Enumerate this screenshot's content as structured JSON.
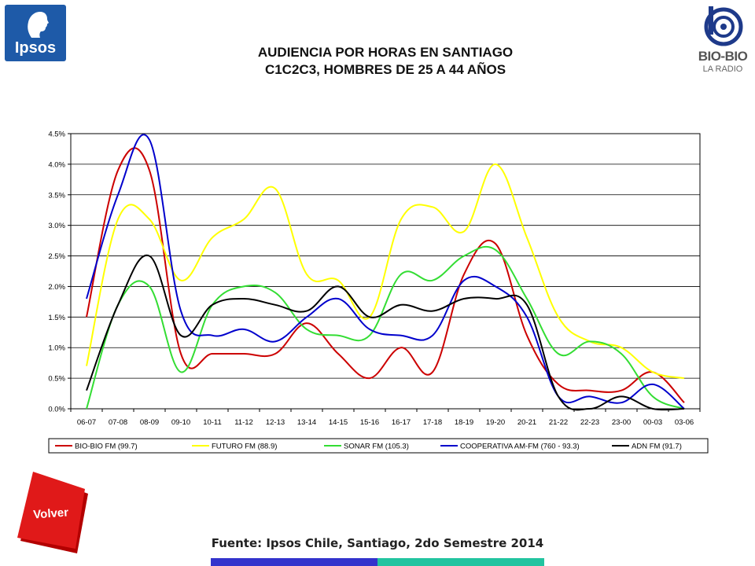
{
  "header": {
    "ipsos_logo_text": "Ipsos",
    "bio_logo_text": "BIO-BIO",
    "bio_logo_sub": "LA RADIO",
    "title_line1": "AUDIENCIA POR HORAS EN SANTIAGO",
    "title_line2": "C1C2C3, HOMBRES DE 25 A 44 AÑOS"
  },
  "footer": {
    "volver_label": "Volver",
    "source": "Fuente: Ipsos Chile, Santiago, 2do Semestre 2014"
  },
  "colors": {
    "ipsos_blue": "#1e5aa8",
    "volver_red": "#e01919",
    "bar_blue": "#3333cc",
    "bar_teal": "#22c4a0"
  },
  "icons": {
    "ipsos": "ipsos-face-logo-icon",
    "bio": "bio-bio-radio-logo-icon"
  },
  "chart_data": {
    "type": "line",
    "title": "",
    "xlabel": "",
    "ylabel": "",
    "ylim": [
      0,
      0.045
    ],
    "yticks": [
      "0.0%",
      "0.5%",
      "1.0%",
      "1.5%",
      "2.0%",
      "2.5%",
      "3.0%",
      "3.5%",
      "4.0%",
      "4.5%"
    ],
    "grid": "horizontal",
    "legend": "bottom",
    "categories": [
      "06-07",
      "07-08",
      "08-09",
      "09-10",
      "10-11",
      "11-12",
      "12-13",
      "13-14",
      "14-15",
      "15-16",
      "16-17",
      "17-18",
      "18-19",
      "19-20",
      "20-21",
      "21-22",
      "22-23",
      "23-00",
      "00-03",
      "03-06"
    ],
    "series": [
      {
        "name": "BIO-BIO FM (99.7)",
        "color": "#cc0000",
        "values": [
          0.015,
          0.039,
          0.039,
          0.009,
          0.009,
          0.009,
          0.009,
          0.014,
          0.009,
          0.005,
          0.01,
          0.006,
          0.022,
          0.027,
          0.012,
          0.004,
          0.003,
          0.003,
          0.006,
          0.001
        ]
      },
      {
        "name": "FUTURO FM (88.9)",
        "color": "#ffff00",
        "values": [
          0.007,
          0.031,
          0.031,
          0.021,
          0.028,
          0.031,
          0.036,
          0.022,
          0.021,
          0.015,
          0.031,
          0.033,
          0.029,
          0.04,
          0.028,
          0.015,
          0.011,
          0.01,
          0.006,
          0.005
        ]
      },
      {
        "name": "SONAR FM (105.3)",
        "color": "#33dd33",
        "values": [
          0.0,
          0.017,
          0.02,
          0.006,
          0.017,
          0.02,
          0.019,
          0.013,
          0.012,
          0.012,
          0.022,
          0.021,
          0.025,
          0.026,
          0.018,
          0.009,
          0.011,
          0.009,
          0.002,
          0.0
        ]
      },
      {
        "name": "COOPERATIVA AM-FM (760 - 93.3)",
        "color": "#0000cc",
        "values": [
          0.018,
          0.035,
          0.044,
          0.016,
          0.012,
          0.013,
          0.011,
          0.015,
          0.018,
          0.013,
          0.012,
          0.012,
          0.021,
          0.02,
          0.015,
          0.002,
          0.002,
          0.001,
          0.004,
          0.0
        ]
      },
      {
        "name": "ADN FM (91.7)",
        "color": "#000000",
        "values": [
          0.003,
          0.017,
          0.025,
          0.012,
          0.017,
          0.018,
          0.017,
          0.016,
          0.02,
          0.015,
          0.017,
          0.016,
          0.018,
          0.018,
          0.017,
          0.002,
          0.0,
          0.002,
          0.0,
          0.0
        ]
      }
    ]
  }
}
